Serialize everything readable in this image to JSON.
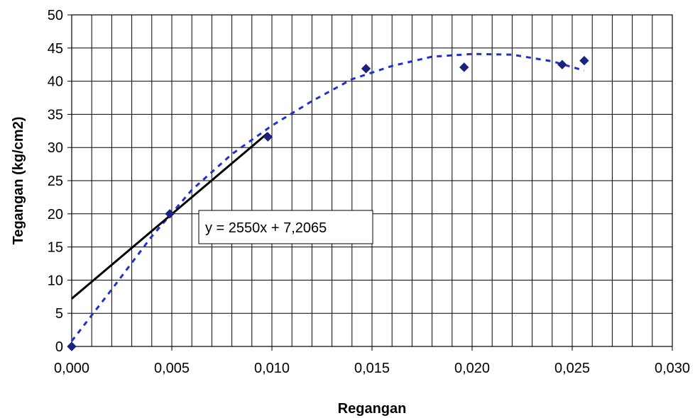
{
  "chart_data": {
    "type": "scatter",
    "title": "",
    "xlabel": "Regangan",
    "ylabel": "Tegangan (kg/cm2)",
    "xlim": [
      0,
      0.03
    ],
    "ylim": [
      0,
      50
    ],
    "x_ticks": [
      "0,000",
      "0,005",
      "0,010",
      "0,015",
      "0,020",
      "0,025",
      "0,030"
    ],
    "x_tick_values": [
      0,
      0.005,
      0.01,
      0.015,
      0.02,
      0.025,
      0.03
    ],
    "y_ticks": [
      "0",
      "5",
      "10",
      "15",
      "20",
      "25",
      "30",
      "35",
      "40",
      "45",
      "50"
    ],
    "y_tick_values": [
      0,
      5,
      10,
      15,
      20,
      25,
      30,
      35,
      40,
      45,
      50
    ],
    "grid": true,
    "x_minor_step": 0.001,
    "points": [
      {
        "x": 0.0,
        "y": 0.0
      },
      {
        "x": 0.0049,
        "y": 20.0
      },
      {
        "x": 0.0098,
        "y": 31.6
      },
      {
        "x": 0.0147,
        "y": 41.9
      },
      {
        "x": 0.0196,
        "y": 42.1
      },
      {
        "x": 0.0245,
        "y": 42.5
      },
      {
        "x": 0.0256,
        "y": 43.1
      }
    ],
    "linear_fit": {
      "slope": 2550,
      "intercept": 7.2065,
      "x_range": [
        0,
        0.0098
      ],
      "label": "y = 2550x + 7,2065"
    },
    "trend_curve": {
      "style": "dashed",
      "points": [
        [
          0.0,
          0.8
        ],
        [
          0.002,
          8.6
        ],
        [
          0.004,
          16.6
        ],
        [
          0.006,
          23.6
        ],
        [
          0.008,
          29.0
        ],
        [
          0.01,
          33.3
        ],
        [
          0.012,
          37.0
        ],
        [
          0.014,
          40.3
        ],
        [
          0.016,
          42.3
        ],
        [
          0.018,
          43.7
        ],
        [
          0.02,
          44.1
        ],
        [
          0.022,
          44.0
        ],
        [
          0.024,
          43.0
        ],
        [
          0.0256,
          41.6
        ]
      ]
    },
    "colors": {
      "marker": "#1a237e",
      "fit_line": "#000000",
      "trend": "#1f2fd0",
      "grid": "#000000"
    }
  }
}
